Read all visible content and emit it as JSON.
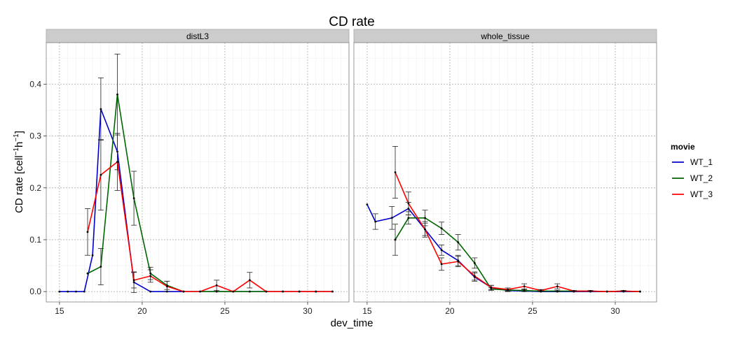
{
  "chart_data": {
    "type": "line",
    "title": "CD rate",
    "xlabel": "dev_time",
    "ylabel": "CD rate [cell",
    "ylabel_sup1": "−1",
    "ylabel_mid": "h",
    "ylabel_sup2": "−1",
    "ylabel_end": "]",
    "xlim": [
      14.2,
      32.5
    ],
    "ylim": [
      -0.02,
      0.48
    ],
    "x_ticks": [
      15,
      20,
      25,
      30
    ],
    "x_tick_labels": [
      "15",
      "20",
      "25",
      "30"
    ],
    "y_ticks": [
      0.0,
      0.1,
      0.2,
      0.3,
      0.4
    ],
    "y_tick_labels": [
      "0.0",
      "0.1",
      "0.2",
      "0.3",
      "0.4"
    ],
    "grid": true,
    "legend": {
      "title": "movie",
      "placement": "right",
      "entries": [
        "WT_1",
        "WT_2",
        "WT_3"
      ]
    },
    "colors": {
      "WT_1": "#0000cc",
      "WT_2": "#006600",
      "WT_3": "#ff0000"
    },
    "panels": [
      {
        "strip": "distL3",
        "series": [
          {
            "name": "WT_1",
            "x": [
              15,
              15.5,
              16,
              16.5,
              17,
              17.5,
              18.5,
              19.5,
              20.5,
              21.5,
              22.5,
              23.5,
              24.5,
              25.5,
              26.5,
              27.5,
              28.5,
              29.5,
              30.5,
              31.5
            ],
            "y": [
              0,
              0,
              0,
              0,
              0.07,
              0.352,
              0.27,
              0.018,
              0,
              0,
              0,
              0,
              0,
              0,
              0,
              0,
              0,
              0,
              0,
              0
            ],
            "err": [
              0,
              0,
              0,
              0,
              0,
              0.06,
              0.035,
              0.02,
              0,
              0,
              0,
              0,
              0,
              0,
              0,
              0,
              0,
              0,
              0,
              0
            ]
          },
          {
            "name": "WT_2",
            "x": [
              16.7,
              17.5,
              18.5,
              19.5,
              20.5,
              21.5,
              22.5,
              23.5,
              24.5,
              25.5,
              26.5,
              27.5,
              28.5,
              29.5,
              30.5,
              31.5
            ],
            "y": [
              0.035,
              0.048,
              0.38,
              0.18,
              0.035,
              0.012,
              0,
              0,
              0,
              0,
              0,
              0,
              0,
              0,
              0,
              0
            ],
            "err": [
              0,
              0.035,
              0.078,
              0.052,
              0.012,
              0.008,
              0,
              0,
              0,
              0,
              0,
              0,
              0,
              0,
              0,
              0
            ]
          },
          {
            "name": "WT_3",
            "x": [
              16.7,
              17.5,
              18.5,
              19.5,
              20.5,
              21.5,
              22.5,
              23.5,
              24.5,
              25.5,
              26.5,
              27.5,
              28.5,
              29.5,
              30.5,
              31.5
            ],
            "y": [
              0.115,
              0.225,
              0.25,
              0.022,
              0.03,
              0.01,
              0,
              0,
              0.012,
              0,
              0.022,
              0,
              0,
              0,
              0,
              0
            ],
            "err": [
              0.045,
              0.068,
              0.055,
              0.015,
              0.012,
              0.01,
              0,
              0,
              0.01,
              0,
              0.015,
              0,
              0,
              0,
              0,
              0
            ]
          }
        ]
      },
      {
        "strip": "whole_tissue",
        "series": [
          {
            "name": "WT_1",
            "x": [
              15,
              15.5,
              16.5,
              17.5,
              18.5,
              19.5,
              20.5,
              21.5,
              22.5,
              23.5,
              24.5,
              25.5,
              26.5,
              27.5,
              28.5,
              29.5,
              30.5,
              31.5
            ],
            "y": [
              0.168,
              0.135,
              0.142,
              0.16,
              0.12,
              0.08,
              0.06,
              0.028,
              0.008,
              0.002,
              0.001,
              0,
              0,
              0,
              0,
              0,
              0,
              0
            ],
            "err": [
              0,
              0.015,
              0.022,
              0.012,
              0.015,
              0.01,
              0.01,
              0.008,
              0.004,
              0.002,
              0.001,
              0,
              0,
              0,
              0,
              0,
              0,
              0
            ]
          },
          {
            "name": "WT_2",
            "x": [
              16.7,
              17.5,
              18.5,
              19.5,
              20.5,
              21.5,
              22.5,
              23.5,
              24.5,
              25.5,
              26.5,
              27.5,
              28.5,
              29.5,
              30.5,
              31.5
            ],
            "y": [
              0.1,
              0.142,
              0.142,
              0.122,
              0.095,
              0.055,
              0.005,
              0.003,
              0.002,
              0.001,
              0.001,
              0.001,
              0.001,
              0,
              0.001,
              0
            ],
            "err": [
              0.03,
              0.012,
              0.015,
              0.012,
              0.015,
              0.01,
              0.003,
              0.002,
              0.002,
              0.001,
              0.001,
              0.001,
              0.001,
              0,
              0.001,
              0
            ]
          },
          {
            "name": "WT_3",
            "x": [
              16.7,
              17.5,
              18.5,
              19.5,
              20.5,
              21.5,
              22.5,
              23.5,
              24.5,
              25.5,
              26.5,
              27.5,
              28.5,
              29.5,
              30.5,
              31.5
            ],
            "y": [
              0.23,
              0.17,
              0.12,
              0.053,
              0.058,
              0.03,
              0.008,
              0.004,
              0.01,
              0.002,
              0.01,
              0.001,
              0.001,
              0,
              0.001,
              0
            ],
            "err": [
              0.05,
              0.022,
              0.012,
              0.012,
              0.01,
              0.008,
              0.004,
              0.003,
              0.005,
              0.002,
              0.005,
              0.001,
              0.001,
              0,
              0.001,
              0
            ]
          }
        ]
      }
    ]
  }
}
